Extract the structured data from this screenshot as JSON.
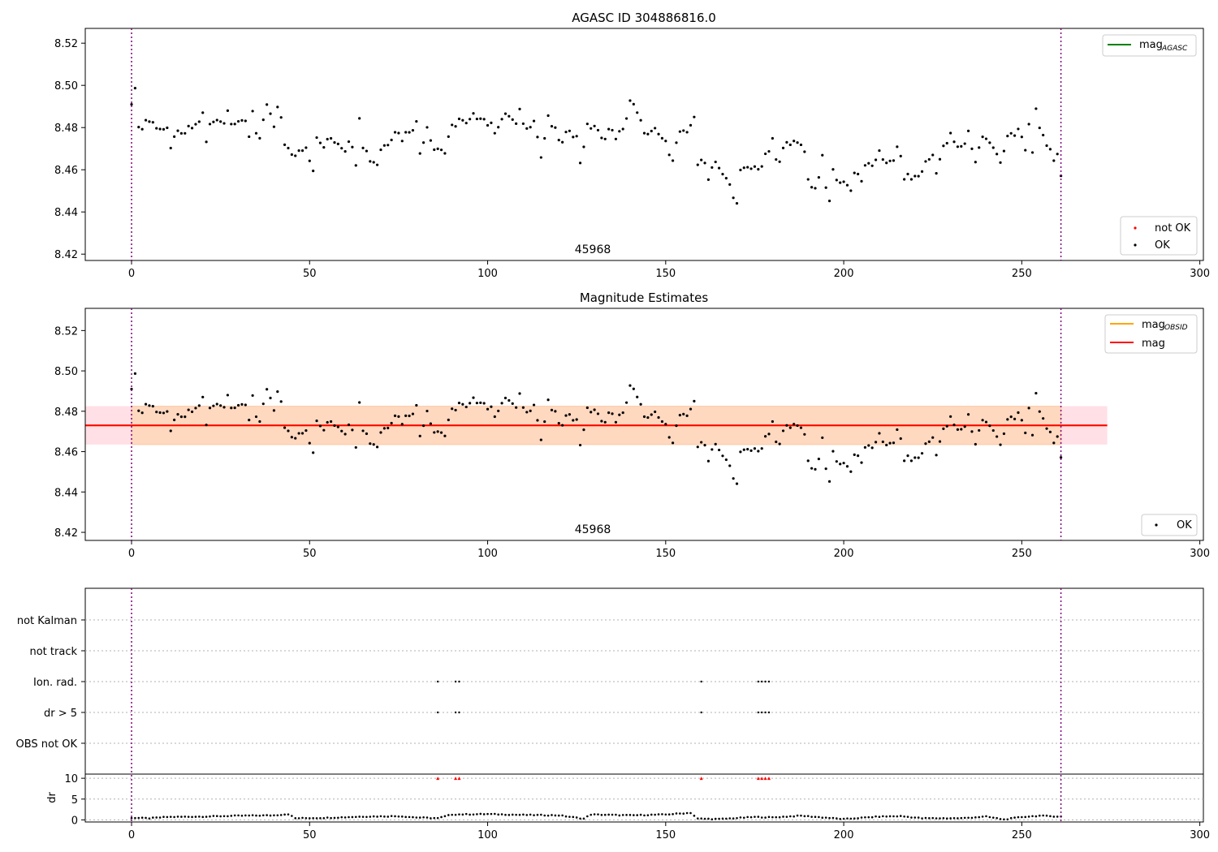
{
  "chart_data": [
    {
      "type": "scatter",
      "title": "AGASC ID 304886816.0",
      "xlabel": "",
      "ylabel": "",
      "xlim": [
        -13,
        301
      ],
      "ylim": [
        8.417,
        8.527
      ],
      "xticks": [
        0,
        50,
        100,
        150,
        200,
        250,
        300
      ],
      "yticks": [
        8.42,
        8.44,
        8.46,
        8.48,
        8.5,
        8.52
      ],
      "ytick_labels": [
        "8.42",
        "8.44",
        "8.46",
        "8.48",
        "8.50",
        "8.52"
      ],
      "obsid_text": "45968",
      "obsid_x": 130,
      "vlines": [
        0,
        261
      ],
      "legend_lines": [
        {
          "name": "mag",
          "sub": "AGASC",
          "color": "#008000"
        }
      ],
      "legend_points": [
        {
          "name": "not OK",
          "color": "#ff0000"
        },
        {
          "name": "OK",
          "color": "#000000"
        }
      ],
      "series": [
        {
          "name": "OK",
          "color": "#000000",
          "x_start": 0,
          "x_step": 1,
          "x_end": 261,
          "anchors": [
            [
              0,
              8.493
            ],
            [
              1,
              8.497
            ],
            [
              2,
              8.482
            ],
            [
              3,
              8.479
            ],
            [
              4,
              8.484
            ],
            [
              6,
              8.482
            ],
            [
              8,
              8.48
            ],
            [
              10,
              8.478
            ],
            [
              11,
              8.469
            ],
            [
              12,
              8.477
            ],
            [
              14,
              8.476
            ],
            [
              16,
              8.479
            ],
            [
              18,
              8.481
            ],
            [
              20,
              8.486
            ],
            [
              21,
              8.473
            ],
            [
              22,
              8.481
            ],
            [
              24,
              8.485
            ],
            [
              26,
              8.482
            ],
            [
              27,
              8.49
            ],
            [
              28,
              8.483
            ],
            [
              30,
              8.481
            ],
            [
              32,
              8.484
            ],
            [
              33,
              8.476
            ],
            [
              34,
              8.489
            ],
            [
              35,
              8.477
            ],
            [
              36,
              8.473
            ],
            [
              38,
              8.491
            ],
            [
              40,
              8.48
            ],
            [
              41,
              8.488
            ],
            [
              42,
              8.485
            ],
            [
              43,
              8.473
            ],
            [
              45,
              8.466
            ],
            [
              47,
              8.469
            ],
            [
              49,
              8.472
            ],
            [
              50,
              8.465
            ],
            [
              51,
              8.461
            ],
            [
              52,
              8.474
            ],
            [
              54,
              8.471
            ],
            [
              56,
              8.475
            ],
            [
              58,
              8.473
            ],
            [
              60,
              8.47
            ],
            [
              61,
              8.475
            ],
            [
              63,
              8.464
            ],
            [
              64,
              8.486
            ],
            [
              65,
              8.472
            ],
            [
              67,
              8.465
            ],
            [
              69,
              8.463
            ],
            [
              70,
              8.47
            ],
            [
              72,
              8.473
            ],
            [
              74,
              8.479
            ],
            [
              76,
              8.475
            ],
            [
              78,
              8.479
            ],
            [
              80,
              8.482
            ],
            [
              81,
              8.468
            ],
            [
              83,
              8.481
            ],
            [
              85,
              8.47
            ],
            [
              87,
              8.47
            ],
            [
              88,
              8.468
            ],
            [
              90,
              8.48
            ],
            [
              92,
              8.484
            ],
            [
              94,
              8.481
            ],
            [
              96,
              8.485
            ],
            [
              98,
              8.486
            ],
            [
              100,
              8.482
            ],
            [
              102,
              8.479
            ],
            [
              104,
              8.484
            ],
            [
              106,
              8.486
            ],
            [
              108,
              8.481
            ],
            [
              109,
              8.487
            ],
            [
              111,
              8.479
            ],
            [
              113,
              8.485
            ],
            [
              115,
              8.466
            ],
            [
              117,
              8.484
            ],
            [
              119,
              8.478
            ],
            [
              121,
              8.472
            ],
            [
              123,
              8.48
            ],
            [
              125,
              8.475
            ],
            [
              126,
              8.464
            ],
            [
              128,
              8.48
            ],
            [
              130,
              8.481
            ],
            [
              132,
              8.474
            ],
            [
              134,
              8.479
            ],
            [
              136,
              8.476
            ],
            [
              138,
              8.478
            ],
            [
              140,
              8.493
            ],
            [
              141,
              8.49
            ],
            [
              142,
              8.486
            ],
            [
              143,
              8.482
            ],
            [
              145,
              8.476
            ],
            [
              147,
              8.478
            ],
            [
              149,
              8.475
            ],
            [
              151,
              8.469
            ],
            [
              152,
              8.466
            ],
            [
              154,
              8.478
            ],
            [
              156,
              8.476
            ],
            [
              158,
              8.486
            ],
            [
              159,
              8.463
            ],
            [
              161,
              8.463
            ],
            [
              162,
              8.457
            ],
            [
              164,
              8.465
            ],
            [
              166,
              8.457
            ],
            [
              168,
              8.453
            ],
            [
              169,
              8.446
            ],
            [
              170,
              8.446
            ],
            [
              171,
              8.459
            ],
            [
              173,
              8.46
            ],
            [
              175,
              8.461
            ],
            [
              177,
              8.462
            ],
            [
              180,
              8.473
            ],
            [
              181,
              8.465
            ],
            [
              182,
              8.463
            ],
            [
              184,
              8.475
            ],
            [
              186,
              8.472
            ],
            [
              188,
              8.472
            ],
            [
              189,
              8.47
            ],
            [
              190,
              8.455
            ],
            [
              192,
              8.451
            ],
            [
              194,
              8.465
            ],
            [
              195,
              8.451
            ],
            [
              196,
              8.446
            ],
            [
              197,
              8.459
            ],
            [
              199,
              8.454
            ],
            [
              201,
              8.454
            ],
            [
              202,
              8.45
            ],
            [
              203,
              8.459
            ],
            [
              205,
              8.454
            ],
            [
              206,
              8.463
            ],
            [
              208,
              8.46
            ],
            [
              210,
              8.47
            ],
            [
              212,
              8.462
            ],
            [
              214,
              8.464
            ],
            [
              215,
              8.472
            ],
            [
              217,
              8.457
            ],
            [
              219,
              8.456
            ],
            [
              221,
              8.457
            ],
            [
              223,
              8.463
            ],
            [
              225,
              8.467
            ],
            [
              226,
              8.46
            ],
            [
              228,
              8.47
            ],
            [
              230,
              8.476
            ],
            [
              232,
              8.47
            ],
            [
              234,
              8.473
            ],
            [
              235,
              8.478
            ],
            [
              237,
              8.464
            ],
            [
              239,
              8.476
            ],
            [
              241,
              8.472
            ],
            [
              243,
              8.469
            ],
            [
              244,
              8.464
            ],
            [
              246,
              8.475
            ],
            [
              248,
              8.476
            ],
            [
              249,
              8.479
            ],
            [
              251,
              8.47
            ],
            [
              252,
              8.481
            ],
            [
              253,
              8.47
            ],
            [
              254,
              8.487
            ],
            [
              255,
              8.478
            ],
            [
              257,
              8.472
            ],
            [
              258,
              8.471
            ],
            [
              259,
              8.465
            ],
            [
              260,
              8.467
            ],
            [
              261,
              8.459
            ]
          ]
        },
        {
          "name": "not OK",
          "color": "#ff0000",
          "points": []
        }
      ]
    },
    {
      "type": "scatter",
      "title": "Magnitude Estimates",
      "xlabel": "",
      "ylabel": "",
      "xlim": [
        -13,
        301
      ],
      "ylim": [
        8.416,
        8.531
      ],
      "xticks": [
        0,
        50,
        100,
        150,
        200,
        250,
        300
      ],
      "yticks": [
        8.42,
        8.44,
        8.46,
        8.48,
        8.5,
        8.52
      ],
      "ytick_labels": [
        "8.42",
        "8.44",
        "8.46",
        "8.48",
        "8.50",
        "8.52"
      ],
      "obsid_text": "45968",
      "obsid_x": 130,
      "vlines": [
        0,
        261
      ],
      "mag": 8.473,
      "mag_band": [
        8.4635,
        8.4825
      ],
      "mag_range_x": [
        -13,
        274
      ],
      "obsid_band_x": [
        0,
        261
      ],
      "legend_lines": [
        {
          "name": "mag",
          "sub": "OBSID",
          "color": "#ffa500"
        },
        {
          "name": "mag",
          "sub": "",
          "color": "#ff0000"
        }
      ],
      "legend_points": [
        {
          "name": "OK",
          "color": "#000000"
        }
      ],
      "series_ref": "same OK series as panel 1"
    },
    {
      "type": "scatter",
      "title": "",
      "xlim": [
        -13,
        301
      ],
      "categories": [
        "not Kalman",
        "not track",
        "Ion. rad.",
        "dr > 5",
        "OBS not OK"
      ],
      "flags": {
        "Ion. rad.": [
          86,
          91,
          92,
          160,
          176,
          177,
          178,
          179
        ],
        "dr > 5": [
          86,
          91,
          92,
          160,
          176,
          177,
          178,
          179
        ]
      },
      "vlines": [
        0,
        261
      ]
    },
    {
      "type": "scatter",
      "title": "",
      "xlabel": "",
      "ylabel": "dr",
      "xlim": [
        -13,
        301
      ],
      "ylim": [
        -0.5,
        11
      ],
      "xticks": [
        0,
        50,
        100,
        150,
        200,
        250,
        300
      ],
      "yticks": [
        0,
        5,
        10
      ],
      "ytick_labels": [
        "0",
        "5",
        "10"
      ],
      "vlines": [
        0,
        261
      ],
      "dr_segments": [
        [
          0,
          0.5
        ],
        [
          5,
          0.4
        ],
        [
          10,
          0.7
        ],
        [
          20,
          0.8
        ],
        [
          30,
          1.0
        ],
        [
          40,
          1.1
        ],
        [
          44,
          1.4
        ],
        [
          46,
          0.4
        ],
        [
          55,
          0.5
        ],
        [
          65,
          0.8
        ],
        [
          75,
          0.9
        ],
        [
          80,
          0.6
        ],
        [
          86,
          0.4
        ],
        [
          90,
          1.3
        ],
        [
          100,
          1.4
        ],
        [
          110,
          1.2
        ],
        [
          120,
          1.1
        ],
        [
          127,
          0.3
        ],
        [
          129,
          1.3
        ],
        [
          140,
          1.1
        ],
        [
          150,
          1.3
        ],
        [
          157,
          1.7
        ],
        [
          159,
          0.3
        ],
        [
          165,
          0.2
        ],
        [
          175,
          0.7
        ],
        [
          180,
          0.6
        ],
        [
          188,
          1.0
        ],
        [
          200,
          0.2
        ],
        [
          210,
          0.8
        ],
        [
          216,
          0.9
        ],
        [
          222,
          0.4
        ],
        [
          233,
          0.4
        ],
        [
          240,
          0.8
        ],
        [
          245,
          0.1
        ],
        [
          250,
          0.7
        ],
        [
          255,
          1.0
        ],
        [
          261,
          0.8
        ]
      ],
      "outliers_at_10": [
        86,
        91,
        92,
        160,
        176,
        177,
        178,
        179
      ]
    }
  ]
}
